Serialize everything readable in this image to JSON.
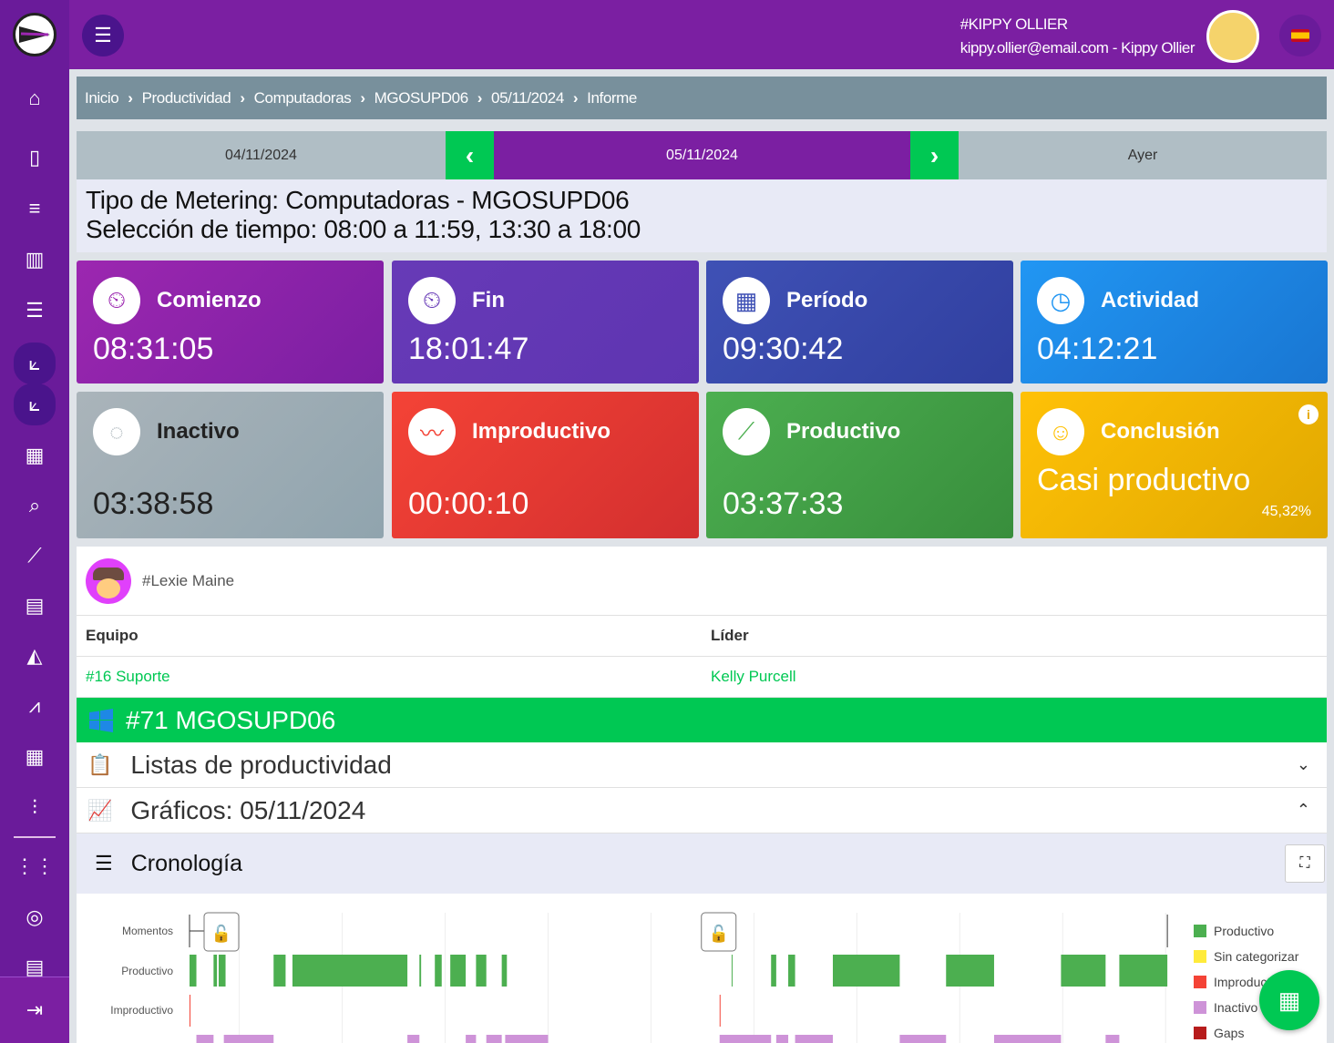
{
  "header": {
    "user_name": "#KIPPY OLLIER",
    "user_line": "kippy.ollier@email.com - Kippy Ollier",
    "language": "es"
  },
  "sidebar": {
    "items": [
      "home-icon",
      "mobile-icon",
      "checklist-icon",
      "map-icon",
      "timeline-icon",
      "chart-line-icon",
      "chart-line-icon",
      "bar-chart-icon",
      "search-report-icon",
      "trending-icon",
      "table-icon",
      "area-chart-icon",
      "line-chart-icon",
      "building-icon",
      "rules-icon",
      "apps-icon",
      "globe-icon",
      "document-icon"
    ],
    "logout": "logout-icon"
  },
  "breadcrumb": [
    "Inicio",
    "Productividad",
    "Computadoras",
    "MGOSUPD06",
    "05/11/2024",
    "Informe"
  ],
  "datenav": {
    "prev": "04/11/2024",
    "current": "05/11/2024",
    "next": "Ayer"
  },
  "info": {
    "line1": "Tipo de Metering: Computadoras - MGOSUPD06",
    "line2": "Selección de tiempo: 08:00 a 11:59, 13:30 a 18:00"
  },
  "cards": [
    {
      "title": "Comienzo",
      "value": "08:31:05",
      "color": "#9c27b0"
    },
    {
      "title": "Fin",
      "value": "18:01:47",
      "color": "#673ab7"
    },
    {
      "title": "Período",
      "value": "09:30:42",
      "color": "#3f51b5"
    },
    {
      "title": "Actividad",
      "value": "04:12:21",
      "color": "#2196f3"
    },
    {
      "title": "Inactivo",
      "value": "03:38:58",
      "color": "#aab4ba"
    },
    {
      "title": "Improductivo",
      "value": "00:00:10",
      "color": "#f44336"
    },
    {
      "title": "Productivo",
      "value": "03:37:33",
      "color": "#4caf50"
    },
    {
      "title": "Conclusión",
      "value": "Casi productivo",
      "percent": "45,32%",
      "color": "#ffc107"
    }
  ],
  "person": {
    "name": "#Lexie Maine"
  },
  "team_table": {
    "headers": [
      "Equipo",
      "Líder"
    ],
    "row": [
      "#16 Suporte",
      "Kelly Purcell"
    ]
  },
  "device": {
    "label": "#71 MGOSUPD06"
  },
  "sections": {
    "lists": "Listas de productividad",
    "charts": "Gráficos: 05/11/2024",
    "timeline": "Cronología"
  },
  "chart_data": {
    "type": "timeline",
    "x_range": [
      "08:31",
      "18:02"
    ],
    "rows": [
      "Momentos",
      "Productivo",
      "Improductivo"
    ],
    "moments": [
      "08:31",
      "18:01"
    ],
    "legend": [
      {
        "name": "Productivo",
        "color": "#4caf50"
      },
      {
        "name": "Sin categorizar",
        "color": "#ffeb3b"
      },
      {
        "name": "Improductivo",
        "color": "#f44336"
      },
      {
        "name": "Inactivo",
        "color": "#ce93d8"
      },
      {
        "name": "Gaps",
        "color": "#b71c1c"
      }
    ],
    "productivo": [
      [
        "08:31",
        "08:35"
      ],
      [
        "08:45",
        "08:47"
      ],
      [
        "08:48",
        "08:52"
      ],
      [
        "09:20",
        "09:27"
      ],
      [
        "09:31",
        "10:38"
      ],
      [
        "10:45",
        "10:46"
      ],
      [
        "10:54",
        "10:58"
      ],
      [
        "11:03",
        "11:12"
      ],
      [
        "11:18",
        "11:24"
      ],
      [
        "11:33",
        "11:36"
      ],
      [
        "13:47",
        "13:47"
      ],
      [
        "14:10",
        "14:13"
      ],
      [
        "14:20",
        "14:24"
      ],
      [
        "14:46",
        "15:25"
      ],
      [
        "15:52",
        "16:20"
      ],
      [
        "16:59",
        "17:25"
      ],
      [
        "17:33",
        "18:01"
      ]
    ],
    "improductivo": [
      [
        "08:31",
        "08:31"
      ],
      [
        "13:40",
        "13:40"
      ]
    ],
    "inactivo": [
      [
        "08:35",
        "08:45"
      ],
      [
        "08:51",
        "09:20"
      ],
      [
        "10:38",
        "10:45"
      ],
      [
        "11:12",
        "11:18"
      ],
      [
        "11:24",
        "11:33"
      ],
      [
        "11:35",
        "12:00"
      ],
      [
        "13:40",
        "14:10"
      ],
      [
        "14:13",
        "14:20"
      ],
      [
        "14:24",
        "14:46"
      ],
      [
        "15:25",
        "15:52"
      ],
      [
        "16:20",
        "16:59"
      ],
      [
        "17:25",
        "17:33"
      ]
    ]
  }
}
